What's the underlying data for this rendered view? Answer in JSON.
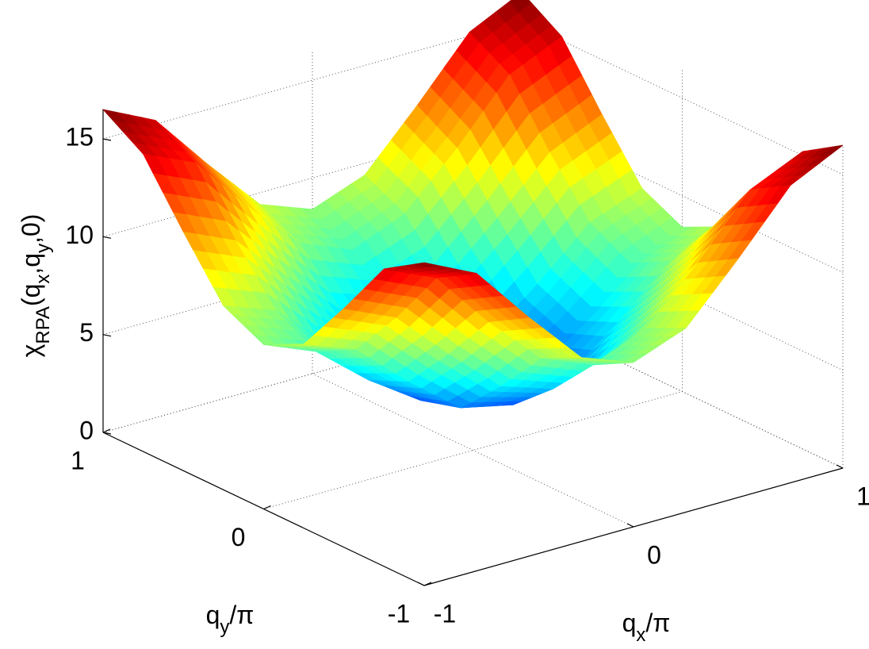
{
  "chart_data": {
    "type": "surface3d",
    "xlabel": [
      {
        "text": "q",
        "sub": false
      },
      {
        "text": "x",
        "sub": true
      },
      {
        "text": "/π",
        "sub": false
      }
    ],
    "ylabel": [
      {
        "text": "q",
        "sub": false
      },
      {
        "text": "y",
        "sub": true
      },
      {
        "text": "/π",
        "sub": false
      }
    ],
    "zlabel": [
      {
        "text": "χ",
        "sub": false
      },
      {
        "text": "RPA",
        "sub": true
      },
      {
        "text": "(q",
        "sub": false
      },
      {
        "text": "x",
        "sub": true
      },
      {
        "text": ",q",
        "sub": false
      },
      {
        "text": "y",
        "sub": true
      },
      {
        "text": ",0)",
        "sub": false
      }
    ],
    "x": [
      -1,
      -0.75,
      -0.5,
      -0.25,
      0,
      0.25,
      0.5,
      0.75,
      1
    ],
    "y": [
      -1,
      -0.75,
      -0.5,
      -0.25,
      0,
      0.25,
      0.5,
      0.75,
      1
    ],
    "z": [
      [
        16.5,
        15.2,
        12.2,
        9.4,
        8.4,
        9.4,
        12.2,
        15.2,
        16.5
      ],
      [
        15.2,
        14.0,
        11.0,
        8.4,
        7.3,
        8.4,
        11.0,
        14.0,
        15.2
      ],
      [
        12.2,
        11.0,
        8.4,
        6.0,
        5.1,
        6.0,
        8.4,
        11.0,
        12.2
      ],
      [
        9.4,
        8.4,
        6.0,
        3.9,
        3.3,
        3.9,
        6.0,
        8.4,
        9.4
      ],
      [
        8.4,
        7.3,
        5.1,
        3.3,
        2.8,
        3.3,
        5.1,
        7.3,
        8.4
      ],
      [
        9.4,
        8.4,
        6.0,
        3.9,
        3.3,
        3.9,
        6.0,
        8.4,
        9.4
      ],
      [
        12.2,
        11.0,
        8.4,
        6.0,
        5.1,
        6.0,
        8.4,
        11.0,
        12.2
      ],
      [
        15.2,
        14.0,
        11.0,
        8.4,
        7.3,
        8.4,
        11.0,
        14.0,
        15.2
      ],
      [
        16.5,
        15.2,
        12.2,
        9.4,
        8.4,
        9.4,
        12.2,
        15.2,
        16.5
      ]
    ],
    "xlim": [
      -1,
      1
    ],
    "ylim": [
      -1,
      1
    ],
    "zlim": [
      0,
      16.5
    ],
    "xticks": [
      -1,
      0,
      1
    ],
    "yticks": [
      -1,
      0,
      1
    ],
    "zticks": [
      0,
      5,
      10,
      15
    ],
    "colormap": "jet",
    "grid": true
  }
}
